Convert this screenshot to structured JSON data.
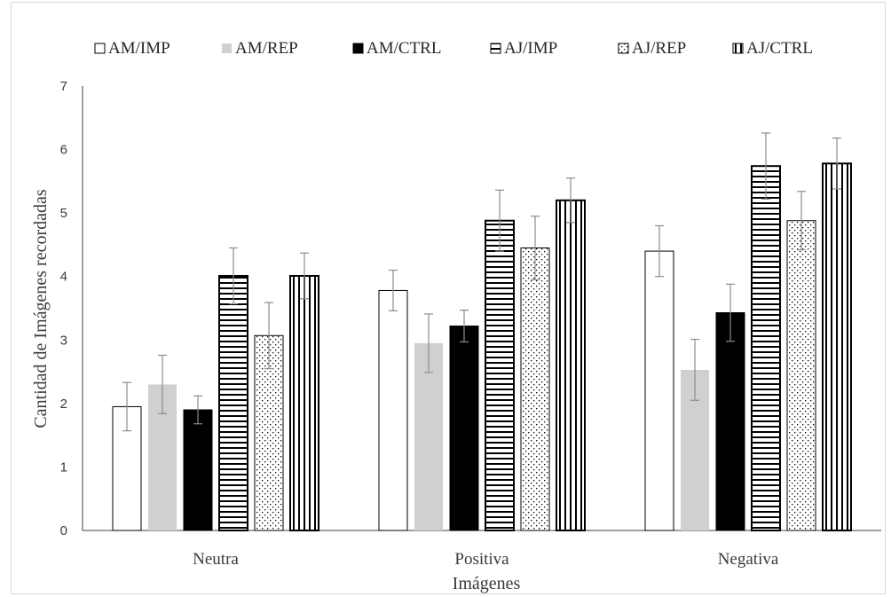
{
  "chart_data": {
    "type": "bar",
    "title": "",
    "xlabel": "Imágenes",
    "ylabel": "Cantidad de Imágenes recordadas",
    "ylim": [
      0,
      7
    ],
    "yticks": [
      "0",
      "1",
      "2",
      "3",
      "4",
      "5",
      "6",
      "7"
    ],
    "grid": false,
    "legend_position": "top",
    "categories": [
      "Neutra",
      "Positiva",
      "Negativa"
    ],
    "series": [
      {
        "name": "AM/IMP",
        "fill": "white",
        "values": [
          1.95,
          3.78,
          4.4
        ],
        "err": [
          0.38,
          0.32,
          0.4
        ]
      },
      {
        "name": "AM/REP",
        "fill": "lightgray",
        "values": [
          2.3,
          2.95,
          2.53
        ],
        "err": [
          0.46,
          0.46,
          0.48
        ]
      },
      {
        "name": "AM/CTRL",
        "fill": "black",
        "values": [
          1.9,
          3.22,
          3.43
        ],
        "err": [
          0.22,
          0.25,
          0.45
        ]
      },
      {
        "name": "AJ/IMP",
        "fill": "horizontal-lines",
        "values": [
          4.01,
          4.88,
          5.74
        ],
        "err": [
          0.44,
          0.48,
          0.52
        ]
      },
      {
        "name": "AJ/REP",
        "fill": "dots",
        "values": [
          3.07,
          4.45,
          4.88
        ],
        "err": [
          0.52,
          0.5,
          0.46
        ]
      },
      {
        "name": "AJ/CTRL",
        "fill": "vertical-lines",
        "values": [
          4.01,
          5.2,
          5.78
        ],
        "err": [
          0.36,
          0.35,
          0.4
        ]
      }
    ],
    "error_bar_color": "#8c8c8c",
    "colors": {
      "lightgray": "#d0d0d0",
      "black": "#000000",
      "axis": "#404040",
      "text": "#3a3a3a"
    }
  }
}
